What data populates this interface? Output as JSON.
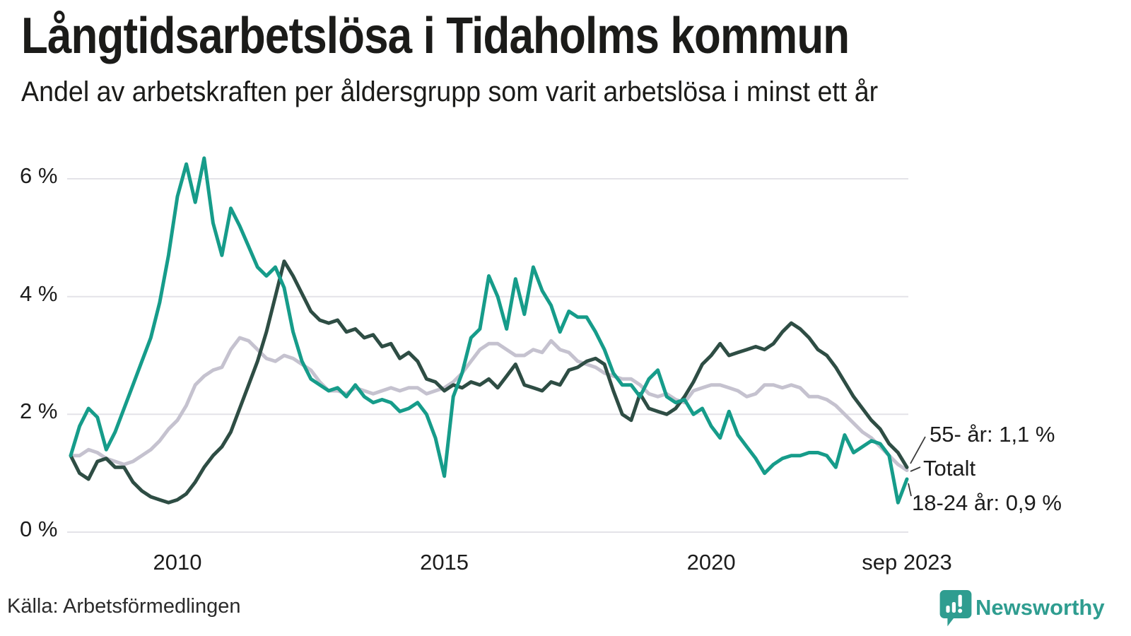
{
  "header": {
    "title": "Långtidsarbetslösa i Tidaholms kommun",
    "subtitle": "Andel av arbetskraften per åldersgrupp som varit arbetslösa i minst ett år"
  },
  "footer": {
    "source": "Källa: Arbetsförmedlingen",
    "brand": "Newsworthy"
  },
  "colors": {
    "teal": "#169c8a",
    "dark_green": "#2e4d44",
    "light_gray": "#c5c2cf",
    "gridline": "#e4e3e8",
    "leader": "#3a3a3a",
    "brand": "#2f9d90",
    "text": "#1c1c1c"
  },
  "chart_data": {
    "type": "line",
    "title": "Långtidsarbetslösa i Tidaholms kommun",
    "subtitle": "Andel av arbetskraften per åldersgrupp som varit arbetslösa i minst ett år",
    "unit": "%",
    "x_start": "2008-01",
    "x_end": "2023-09",
    "step_months": 2,
    "ylim": [
      0,
      6.6
    ],
    "grid": "horizontal",
    "legend_position": "end-of-line labels",
    "y_ticks": [
      {
        "value": 0,
        "label": "0 %"
      },
      {
        "value": 2,
        "label": "2 %"
      },
      {
        "value": 4,
        "label": "4 %"
      },
      {
        "value": 6,
        "label": "6 %"
      }
    ],
    "x_ticks": [
      {
        "index": 12,
        "label": "2010"
      },
      {
        "index": 42,
        "label": "2015"
      },
      {
        "index": 72,
        "label": "2020"
      },
      {
        "index": 94,
        "label": "sep 2023"
      }
    ],
    "series": [
      {
        "name": "Totalt",
        "color": "#c5c2cf",
        "end_label": "Totalt",
        "values": [
          1.3,
          1.3,
          1.4,
          1.35,
          1.25,
          1.2,
          1.15,
          1.2,
          1.3,
          1.4,
          1.55,
          1.75,
          1.9,
          2.15,
          2.5,
          2.65,
          2.75,
          2.8,
          3.1,
          3.3,
          3.25,
          3.1,
          2.95,
          2.9,
          3.0,
          2.95,
          2.85,
          2.75,
          2.55,
          2.4,
          2.4,
          2.35,
          2.45,
          2.4,
          2.35,
          2.4,
          2.45,
          2.4,
          2.45,
          2.45,
          2.35,
          2.4,
          2.45,
          2.55,
          2.7,
          2.9,
          3.1,
          3.2,
          3.2,
          3.1,
          3.0,
          3.0,
          3.1,
          3.05,
          3.25,
          3.1,
          3.05,
          2.9,
          2.85,
          2.8,
          2.7,
          2.65,
          2.6,
          2.6,
          2.5,
          2.35,
          2.3,
          2.35,
          2.25,
          2.2,
          2.4,
          2.45,
          2.5,
          2.5,
          2.45,
          2.4,
          2.3,
          2.35,
          2.5,
          2.5,
          2.45,
          2.5,
          2.45,
          2.3,
          2.3,
          2.25,
          2.15,
          2.0,
          1.85,
          1.7,
          1.6,
          1.45,
          1.3,
          1.15,
          1.05
        ]
      },
      {
        "name": "55- år",
        "color": "#2e4d44",
        "end_label": "55- år: 1,1 %",
        "end_value": 1.1,
        "values": [
          1.3,
          1.0,
          0.9,
          1.2,
          1.25,
          1.1,
          1.1,
          0.85,
          0.7,
          0.6,
          0.55,
          0.5,
          0.55,
          0.65,
          0.85,
          1.1,
          1.3,
          1.45,
          1.7,
          2.1,
          2.5,
          2.9,
          3.4,
          4.0,
          4.6,
          4.35,
          4.05,
          3.75,
          3.6,
          3.55,
          3.6,
          3.4,
          3.45,
          3.3,
          3.35,
          3.15,
          3.2,
          2.95,
          3.05,
          2.9,
          2.6,
          2.55,
          2.4,
          2.5,
          2.45,
          2.55,
          2.5,
          2.6,
          2.45,
          2.65,
          2.85,
          2.5,
          2.45,
          2.4,
          2.55,
          2.5,
          2.75,
          2.8,
          2.9,
          2.95,
          2.85,
          2.4,
          2.0,
          1.9,
          2.35,
          2.1,
          2.05,
          2.0,
          2.1,
          2.3,
          2.55,
          2.85,
          3.0,
          3.2,
          3.0,
          3.05,
          3.1,
          3.15,
          3.1,
          3.2,
          3.4,
          3.55,
          3.45,
          3.3,
          3.1,
          3.0,
          2.8,
          2.55,
          2.3,
          2.1,
          1.9,
          1.75,
          1.5,
          1.35,
          1.1
        ]
      },
      {
        "name": "18-24 år",
        "color": "#169c8a",
        "end_label": "18-24 år: 0,9 %",
        "end_value": 0.9,
        "values": [
          1.3,
          1.8,
          2.1,
          1.95,
          1.4,
          1.7,
          2.1,
          2.5,
          2.9,
          3.3,
          3.9,
          4.7,
          5.7,
          6.25,
          5.6,
          6.35,
          5.25,
          4.7,
          5.5,
          5.2,
          4.85,
          4.5,
          4.35,
          4.5,
          4.15,
          3.4,
          2.9,
          2.6,
          2.5,
          2.4,
          2.45,
          2.3,
          2.5,
          2.3,
          2.2,
          2.25,
          2.2,
          2.05,
          2.1,
          2.2,
          2.0,
          1.6,
          0.95,
          2.3,
          2.7,
          3.3,
          3.45,
          4.35,
          4.0,
          3.45,
          4.3,
          3.7,
          4.5,
          4.1,
          3.85,
          3.4,
          3.75,
          3.65,
          3.65,
          3.4,
          3.1,
          2.7,
          2.5,
          2.5,
          2.3,
          2.6,
          2.75,
          2.3,
          2.2,
          2.25,
          2.0,
          2.1,
          1.8,
          1.6,
          2.05,
          1.65,
          1.45,
          1.25,
          1.0,
          1.15,
          1.25,
          1.3,
          1.3,
          1.35,
          1.35,
          1.3,
          1.1,
          1.65,
          1.35,
          1.45,
          1.55,
          1.5,
          1.3,
          0.5,
          0.9
        ]
      }
    ]
  }
}
